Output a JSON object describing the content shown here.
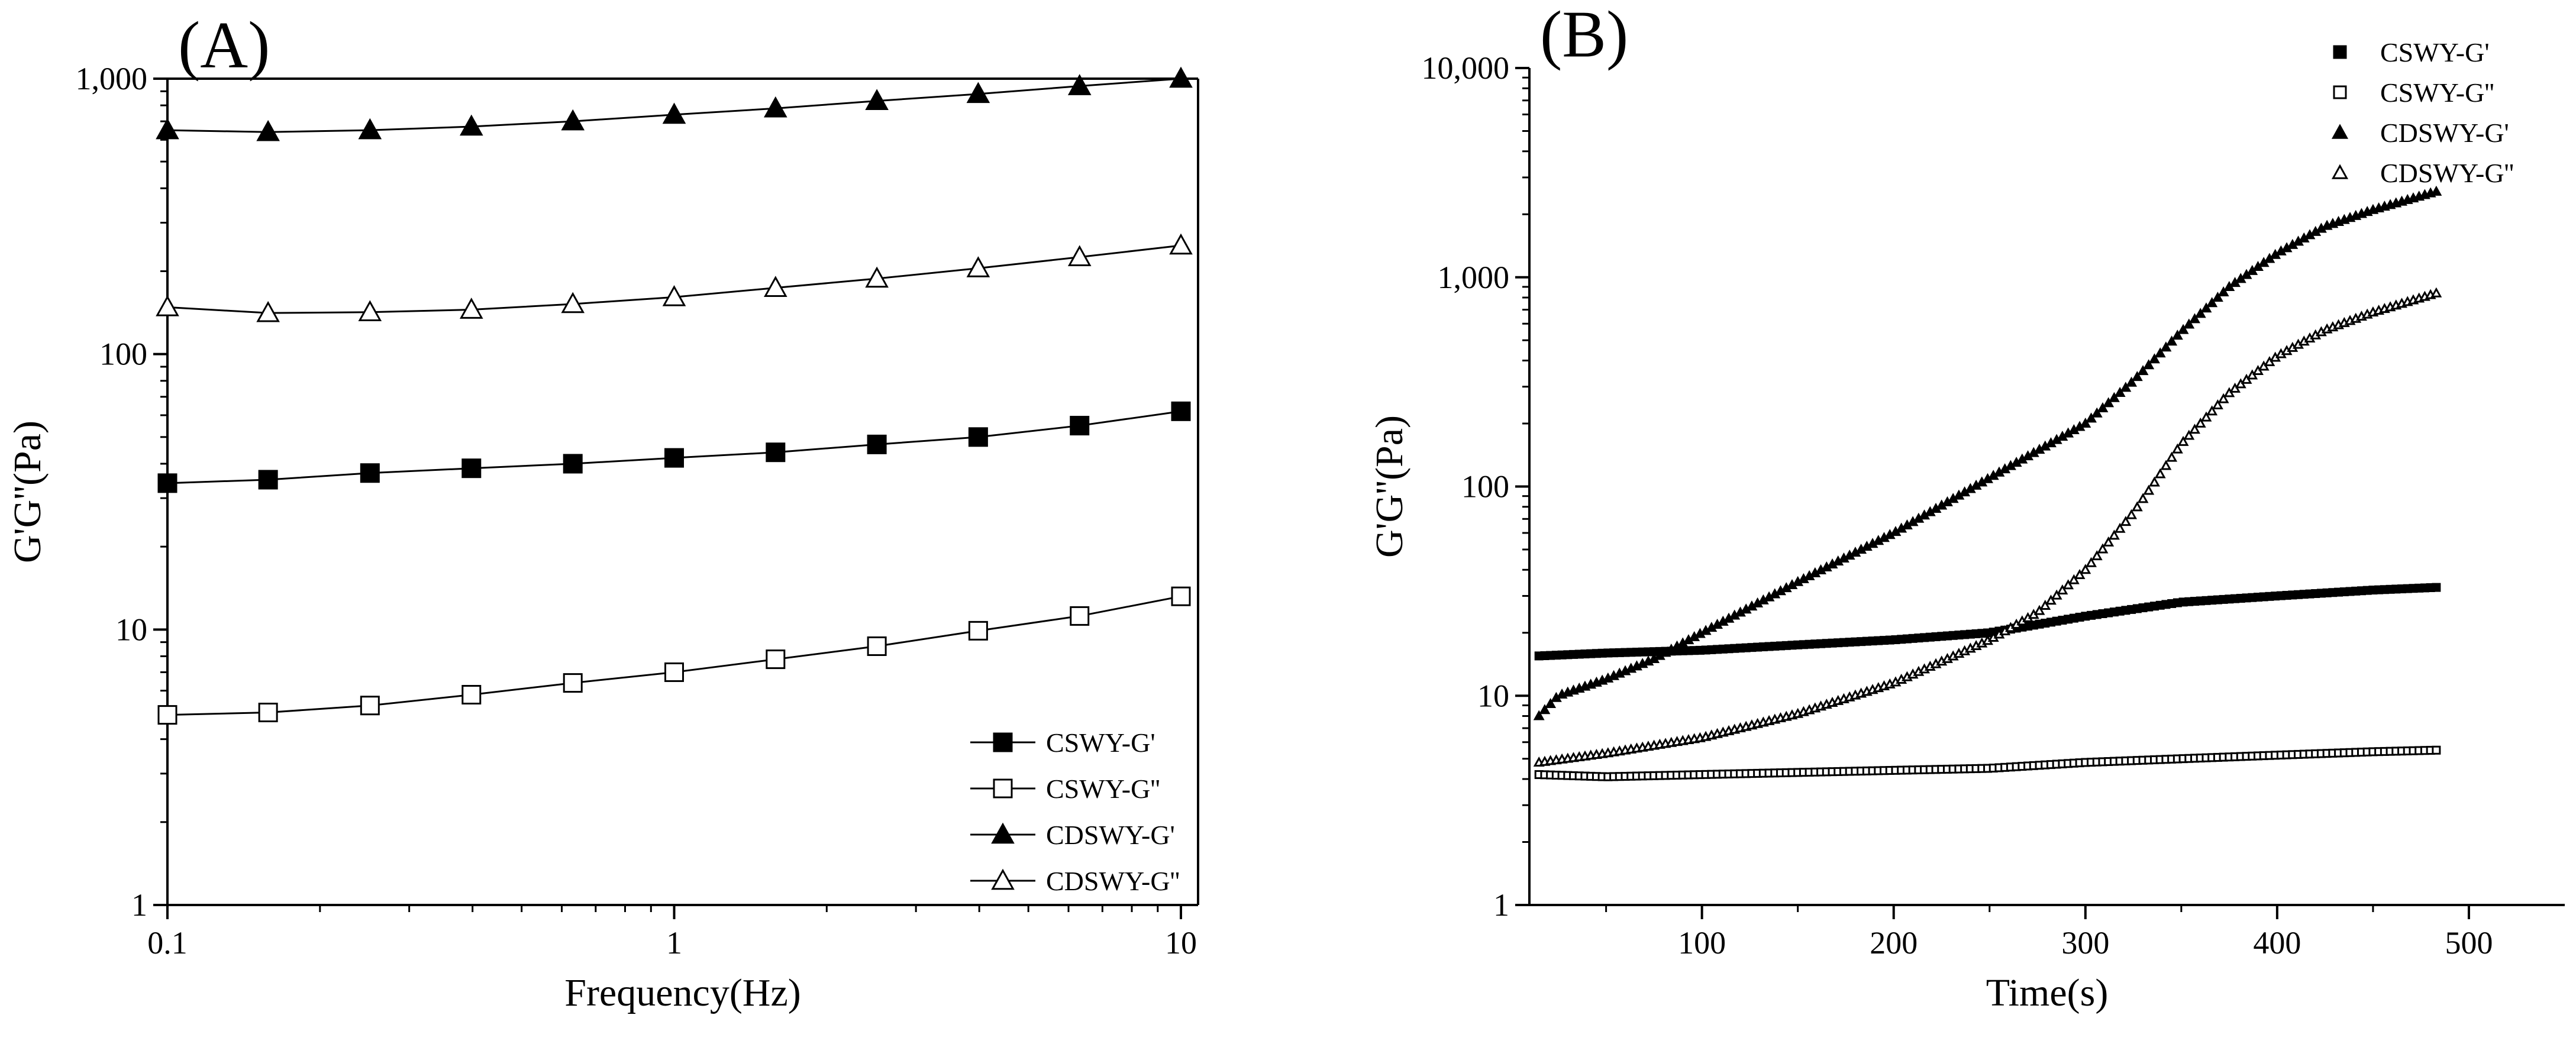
{
  "chart_data": [
    {
      "panel": "(A)",
      "type": "line",
      "xlabel": "Frequency(Hz)",
      "ylabel": "G'G''(Pa)",
      "xscale": "log",
      "yscale": "log",
      "xlim": [
        0.1,
        10
      ],
      "ylim": [
        1,
        1000
      ],
      "xticks": [
        "0.1",
        "1",
        "10"
      ],
      "yticks": [
        "1",
        "10",
        "100",
        "1,000"
      ],
      "legend_position": "bottom-right",
      "x": [
        0.1,
        0.158,
        0.251,
        0.398,
        0.631,
        1,
        1.585,
        2.512,
        3.981,
        6.31,
        10
      ],
      "series": [
        {
          "name": "CSWY-G'",
          "marker": "square-filled",
          "values": [
            34,
            35,
            37,
            38.5,
            40,
            42,
            44,
            47,
            50,
            55,
            62
          ]
        },
        {
          "name": "CSWY-G''",
          "marker": "square-open",
          "values": [
            4.9,
            5.0,
            5.3,
            5.8,
            6.4,
            7.0,
            7.8,
            8.7,
            9.9,
            11.2,
            13.2
          ]
        },
        {
          "name": "CDSWY-G'",
          "marker": "triangle-filled",
          "values": [
            650,
            640,
            650,
            670,
            700,
            740,
            780,
            830,
            880,
            940,
            1000
          ]
        },
        {
          "name": "CDSWY-G''",
          "marker": "triangle-open",
          "values": [
            148,
            141,
            142,
            145,
            152,
            161,
            174,
            188,
            205,
            225,
            248
          ]
        }
      ]
    },
    {
      "panel": "(B)",
      "type": "scatter",
      "xlabel": "Time(s)",
      "ylabel": "G'G''(Pa)",
      "xscale": "linear",
      "yscale": "log",
      "xlim": [
        10,
        550
      ],
      "ylim": [
        1,
        10000
      ],
      "xticks": [
        "100",
        "200",
        "300",
        "400",
        "500"
      ],
      "yticks": [
        "1",
        "10",
        "100",
        "1,000",
        "10,000"
      ],
      "legend_position": "top-right",
      "series": [
        {
          "name": "CSWY-G'",
          "marker": "square-filled",
          "t": [
            15,
            50,
            100,
            150,
            200,
            250,
            300,
            350,
            400,
            450,
            485
          ],
          "values": [
            15.5,
            16,
            16.5,
            17.5,
            18.5,
            20,
            24,
            28,
            30,
            32,
            33
          ]
        },
        {
          "name": "CSWY-G''",
          "marker": "square-open",
          "t": [
            15,
            50,
            100,
            150,
            200,
            250,
            300,
            350,
            400,
            450,
            485
          ],
          "values": [
            4.2,
            4.1,
            4.2,
            4.3,
            4.4,
            4.5,
            4.8,
            5.0,
            5.2,
            5.4,
            5.5
          ]
        },
        {
          "name": "CDSWY-G'",
          "marker": "triangle-filled",
          "t": [
            15,
            25,
            50,
            75,
            100,
            150,
            200,
            250,
            300,
            325,
            350,
            375,
            400,
            425,
            450,
            485
          ],
          "values": [
            8,
            10,
            12,
            15,
            20,
            35,
            60,
            110,
            200,
            320,
            550,
            900,
            1300,
            1750,
            2100,
            2600
          ]
        },
        {
          "name": "CDSWY-G''",
          "marker": "triangle-open",
          "t": [
            15,
            50,
            100,
            150,
            200,
            250,
            275,
            300,
            325,
            350,
            375,
            400,
            425,
            450,
            485
          ],
          "values": [
            4.8,
            5.3,
            6.3,
            8.2,
            11.5,
            18.5,
            25,
            40,
            75,
            160,
            280,
            420,
            560,
            680,
            850
          ]
        }
      ]
    }
  ]
}
